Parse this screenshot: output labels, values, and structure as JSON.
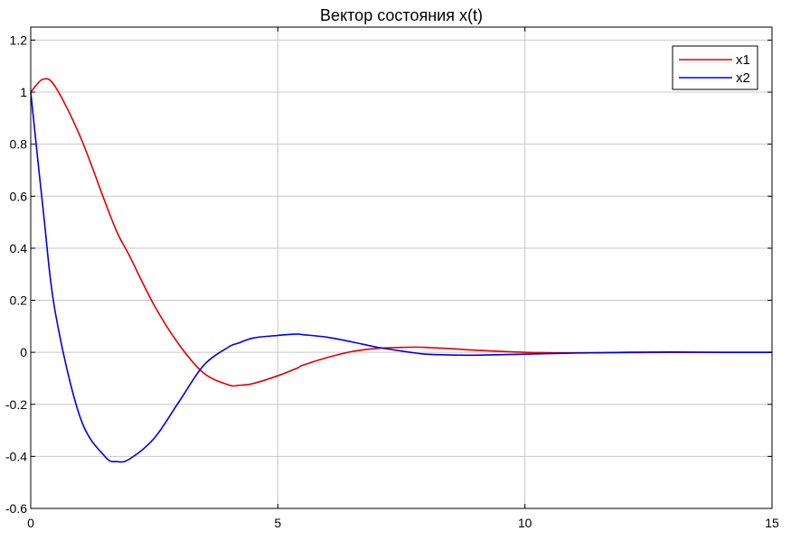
{
  "chart_data": {
    "type": "line",
    "title": "Вектор состояния x(t)",
    "xlabel": "",
    "ylabel": "",
    "xlim": [
      0,
      15
    ],
    "ylim": [
      -0.6,
      1.25
    ],
    "xticks": [
      "0",
      "5",
      "10",
      "15"
    ],
    "yticks": [
      "-0.6",
      "-0.4",
      "-0.2",
      "0",
      "0.2",
      "0.4",
      "0.6",
      "0.8",
      "1",
      "1.2"
    ],
    "grid": true,
    "legend_position": "top-right",
    "x": [
      0,
      0.25,
      0.5,
      1,
      1.5,
      1.75,
      2,
      2.5,
      3,
      3.5,
      4,
      4.2,
      4.5,
      5,
      5.4,
      5.5,
      6,
      6.5,
      7,
      7.5,
      7.8,
      8,
      8.5,
      9,
      10,
      11,
      12,
      13,
      14,
      15
    ],
    "series": [
      {
        "name": "x1",
        "color": "#e00000",
        "values": [
          1.0,
          1.05,
          1.02,
          0.83,
          0.58,
          0.46,
          0.37,
          0.18,
          0.03,
          -0.08,
          -0.125,
          -0.127,
          -0.12,
          -0.09,
          -0.06,
          -0.05,
          -0.02,
          0.003,
          0.015,
          0.019,
          0.02,
          0.019,
          0.014,
          0.008,
          0.0,
          -0.002,
          -0.001,
          0.0,
          0.0,
          0.0
        ]
      },
      {
        "name": "x2",
        "color": "#0000e0",
        "values": [
          1.0,
          0.55,
          0.15,
          -0.25,
          -0.4,
          -0.42,
          -0.41,
          -0.33,
          -0.19,
          -0.05,
          0.02,
          0.035,
          0.055,
          0.065,
          0.07,
          0.068,
          0.058,
          0.04,
          0.02,
          0.005,
          -0.003,
          -0.007,
          -0.01,
          -0.011,
          -0.007,
          -0.003,
          0.0,
          0.001,
          0.0,
          0.0
        ]
      }
    ]
  }
}
